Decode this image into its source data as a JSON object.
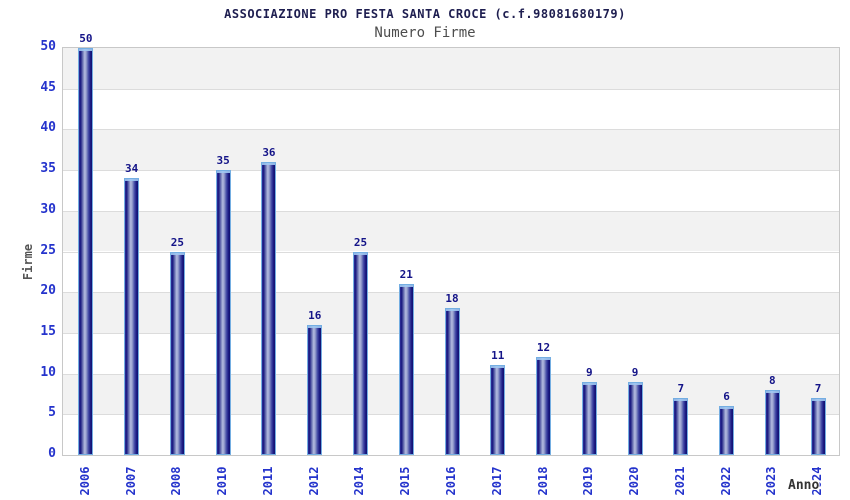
{
  "chart_data": {
    "type": "bar",
    "title": "ASSOCIAZIONE PRO FESTA SANTA CROCE (c.f.98081680179)",
    "subtitle": "Numero Firme",
    "xlabel": "Anno",
    "ylabel": "Firme",
    "categories": [
      "2006",
      "2007",
      "2008",
      "2010",
      "2011",
      "2012",
      "2014",
      "2015",
      "2016",
      "2017",
      "2018",
      "2019",
      "2020",
      "2021",
      "2022",
      "2023",
      "2024"
    ],
    "values": [
      50,
      34,
      25,
      35,
      36,
      16,
      25,
      21,
      18,
      11,
      12,
      9,
      9,
      7,
      6,
      8,
      7
    ],
    "ylim": [
      0,
      50
    ],
    "ytick_step": 5,
    "grid": "horizontal gridlines with alternating gray/white bands, first band below top is gray",
    "legend": "none",
    "bar_labels_shown": true,
    "x_tick_rotation_deg": -90,
    "colors": {
      "band_gray": "#f2f2f2",
      "gridline": "#dcdcdc",
      "plot_border": "#c8c8c8",
      "tick_label_blue": "#2433cc",
      "bar_value_navy": "#141488",
      "title": "#1e1e50",
      "subtitle": "#4d4d4d",
      "ylabel_gray": "#555555",
      "xlabel_dark": "#333333",
      "bar_outline_lightblue": "#74aee2",
      "bar_gradient_dark": "#10106e",
      "bar_gradient_light": "#b3bbdf",
      "background": "#ffffff"
    }
  }
}
